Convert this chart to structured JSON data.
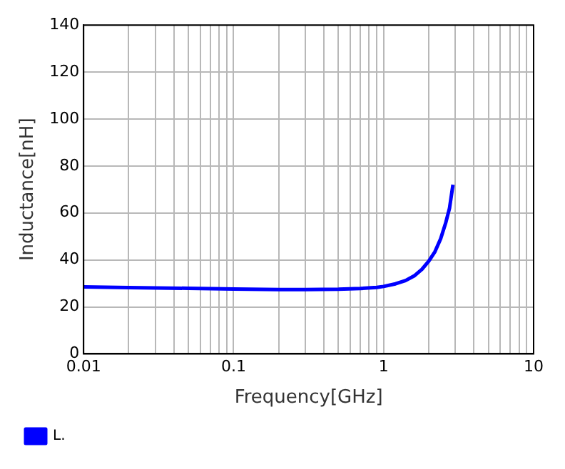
{
  "chart_data": {
    "type": "line",
    "xlabel": "Frequency[GHz]",
    "ylabel": "Inductance[nH]",
    "x": [
      0.01,
      0.02,
      0.05,
      0.1,
      0.2,
      0.3,
      0.5,
      0.7,
      0.9,
      1.0,
      1.2,
      1.4,
      1.6,
      1.8,
      2.0,
      2.2,
      2.4,
      2.6,
      2.75,
      2.9
    ],
    "series": [
      {
        "name": "L.",
        "color": "#0000ff",
        "values": [
          28.5,
          28.2,
          27.9,
          27.6,
          27.4,
          27.4,
          27.5,
          27.8,
          28.3,
          28.7,
          29.8,
          31.2,
          33.2,
          36,
          39.5,
          43.5,
          49,
          56,
          62,
          72
        ]
      }
    ],
    "xlim": [
      0.01,
      10
    ],
    "xticks": [
      0.01,
      {
        "value": 0.02,
        "label": null
      },
      {
        "value": 0.03,
        "label": null
      },
      {
        "value": 0.04,
        "label": null
      },
      {
        "value": 0.05,
        "label": null
      },
      {
        "value": 0.06,
        "label": null
      },
      {
        "value": 0.07,
        "label": null
      },
      {
        "value": 0.08,
        "label": null
      },
      {
        "value": 0.09,
        "label": null
      },
      0.1,
      {
        "value": 0.2,
        "label": null
      },
      {
        "value": 0.3,
        "label": null
      },
      {
        "value": 0.4,
        "label": null
      },
      {
        "value": 0.5,
        "label": null
      },
      {
        "value": 0.6,
        "label": null
      },
      {
        "value": 0.7,
        "label": null
      },
      {
        "value": 0.8,
        "label": null
      },
      {
        "value": 0.9,
        "label": null
      },
      1,
      {
        "value": 2,
        "label": null
      },
      {
        "value": 3,
        "label": null
      },
      {
        "value": 4,
        "label": null
      },
      {
        "value": 5,
        "label": null
      },
      {
        "value": 6,
        "label": null
      },
      {
        "value": 7,
        "label": null
      },
      {
        "value": 8,
        "label": null
      },
      {
        "value": 9,
        "label": null
      },
      10
    ],
    "ylim": [
      0,
      140
    ],
    "yticks": [
      0,
      20,
      40,
      60,
      80,
      100,
      120,
      140
    ],
    "log": "x",
    "grid": true,
    "legend": "bottom left",
    "marker": "none",
    "line_style": "solid"
  }
}
